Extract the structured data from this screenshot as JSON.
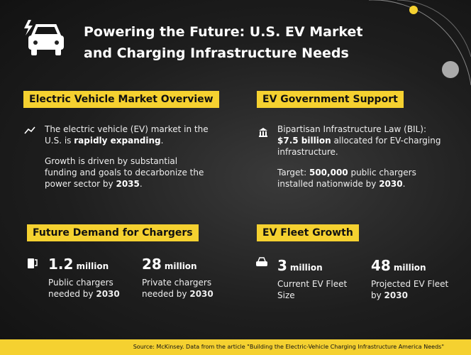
{
  "header": {
    "title": "Powering the Future: U.S. EV Market and Charging Infrastructure Needs"
  },
  "market": {
    "heading": "Electric Vehicle Market Overview",
    "paragraphs": [
      [
        "The electric vehicle (EV) market in the U.S. is ",
        "rapidly expanding",
        "."
      ],
      [
        "Growth is driven by substantial funding and goals to decarbonize the power sector by ",
        "2035",
        "."
      ]
    ]
  },
  "support": {
    "heading": "EV Government Support",
    "paragraphs": [
      [
        "Bipartisan Infrastructure Law (BIL): ",
        "$7.5 billion",
        " allocated for EV-charging infrastructure."
      ],
      [
        "Target: ",
        "500,000",
        " public chargers installed nationwide by ",
        "2030",
        "."
      ]
    ]
  },
  "demand": {
    "heading": "Future Demand for Chargers",
    "stats": [
      {
        "number": "1.2",
        "unit": "million",
        "label": "Public chargers needed by ",
        "year": "2030"
      },
      {
        "number": "28",
        "unit": "million",
        "label": "Private chargers needed by ",
        "year": "2030"
      }
    ]
  },
  "fleet": {
    "heading": "EV Fleet Growth",
    "stats": [
      {
        "number": "3",
        "unit": "million",
        "label": "Current EV Fleet Size"
      },
      {
        "number": "48",
        "unit": "million",
        "label": "Projected EV Fleet by ",
        "year": "2030"
      }
    ]
  },
  "footer": {
    "source": "Source: McKinsey. Data from the article \"Building the Electric-Vehicle Charging Infrastructure America Needs\""
  }
}
